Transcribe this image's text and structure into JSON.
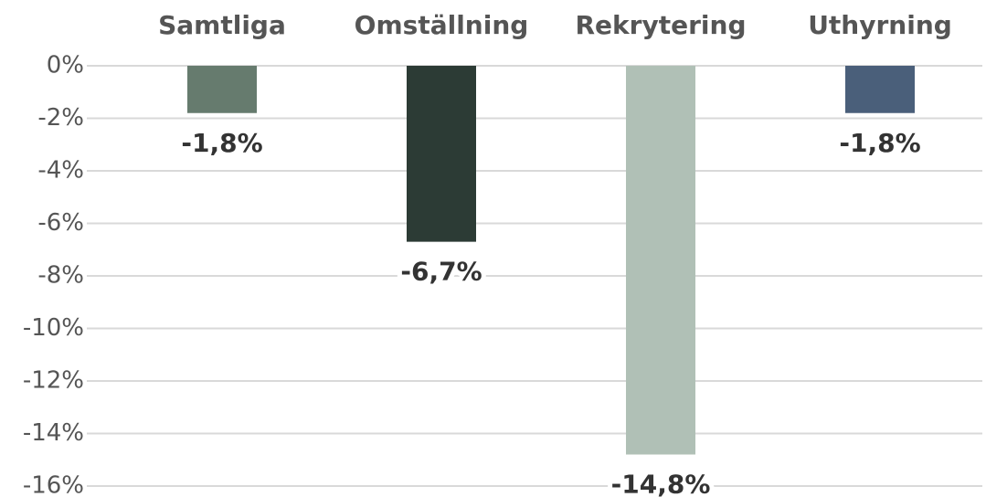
{
  "chart_data": {
    "type": "bar",
    "categories": [
      "Samtliga",
      "Omställning",
      "Rekrytering",
      "Uthyrning"
    ],
    "values": [
      -1.8,
      -6.7,
      -14.8,
      -1.8
    ],
    "value_labels": [
      "-1,8%",
      "-6,7%",
      "-14,8%",
      "-1,8%"
    ],
    "colors": [
      "#667b6e",
      "#2c3b35",
      "#b0c0b6",
      "#4a5f7a"
    ],
    "ylim": [
      -16,
      0
    ],
    "yticks": [
      {
        "value": 0,
        "label": "0%"
      },
      {
        "value": -2,
        "label": "-2%"
      },
      {
        "value": -4,
        "label": "-4%"
      },
      {
        "value": -6,
        "label": "-6%"
      },
      {
        "value": -8,
        "label": "-8%"
      },
      {
        "value": -10,
        "label": "-10%"
      },
      {
        "value": -12,
        "label": "-12%"
      },
      {
        "value": -14,
        "label": "-14%"
      },
      {
        "value": -16,
        "label": "-16%"
      }
    ],
    "grid": true
  }
}
